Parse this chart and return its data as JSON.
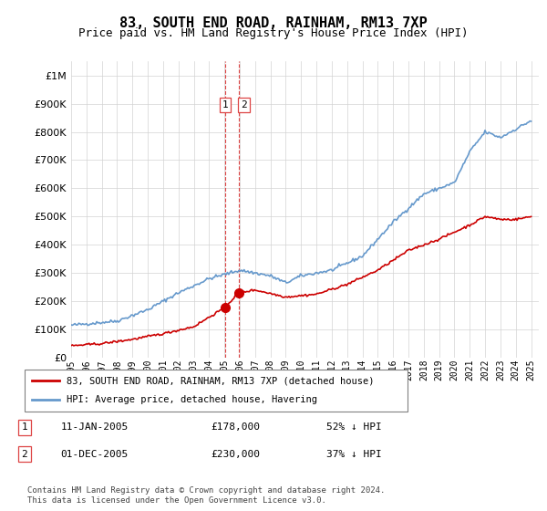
{
  "title": "83, SOUTH END ROAD, RAINHAM, RM13 7XP",
  "subtitle": "Price paid vs. HM Land Registry's House Price Index (HPI)",
  "legend_line1": "83, SOUTH END ROAD, RAINHAM, RM13 7XP (detached house)",
  "legend_line2": "HPI: Average price, detached house, Havering",
  "footer": "Contains HM Land Registry data © Crown copyright and database right 2024.\nThis data is licensed under the Open Government Licence v3.0.",
  "transaction1_label": "1",
  "transaction1_date": "11-JAN-2005",
  "transaction1_price": "£178,000",
  "transaction1_hpi": "52% ↓ HPI",
  "transaction2_label": "2",
  "transaction2_date": "01-DEC-2005",
  "transaction2_price": "£230,000",
  "transaction2_hpi": "37% ↓ HPI",
  "vline_x1": 2005.03,
  "vline_x2": 2005.92,
  "marker1_x": 2005.03,
  "marker1_y": 178000,
  "marker2_x": 2005.92,
  "marker2_y": 230000,
  "red_color": "#cc0000",
  "blue_color": "#6699cc",
  "vline_color": "#dd4444",
  "background_color": "#ffffff",
  "ylim": [
    0,
    1050000
  ],
  "xlim_start": 1995,
  "xlim_end": 2025.5,
  "hpi_key_x": [
    1995,
    1998,
    2000,
    2002,
    2004,
    2006,
    2008,
    2009,
    2010,
    2012,
    2014,
    2016,
    2018,
    2020,
    2021,
    2022,
    2023,
    2024,
    2025
  ],
  "hpi_key_y": [
    115000,
    130000,
    170000,
    230000,
    280000,
    310000,
    290000,
    265000,
    290000,
    310000,
    360000,
    480000,
    580000,
    620000,
    730000,
    800000,
    780000,
    810000,
    840000
  ],
  "red_key_x": [
    1995,
    1997,
    1999,
    2001,
    2003,
    2005.03,
    2005.92,
    2007,
    2009,
    2011,
    2013,
    2015,
    2017,
    2019,
    2021,
    2022,
    2023,
    2024,
    2025
  ],
  "red_key_y": [
    42000,
    50000,
    65000,
    85000,
    110000,
    178000,
    230000,
    240000,
    215000,
    225000,
    260000,
    310000,
    380000,
    420000,
    470000,
    500000,
    490000,
    490000,
    500000
  ]
}
